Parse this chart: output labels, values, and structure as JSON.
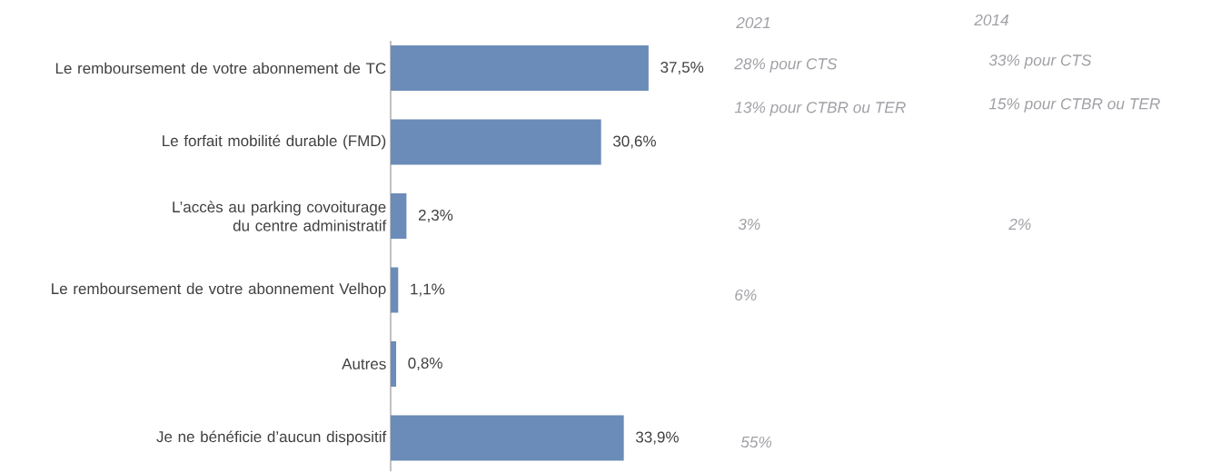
{
  "chart_data": {
    "type": "bar",
    "orientation": "horizontal",
    "relative": false,
    "categories": [
      "Le remboursement de votre abonnement de TC",
      "Le forfait mobilité durable (FMD)",
      "L’accès au parking covoiturage du centre administratif",
      "Le remboursement de votre abonnement Velhop",
      "Autres",
      "Je ne bénéficie d’aucun dispositif"
    ],
    "values": [
      37.5,
      30.6,
      2.3,
      1.1,
      0.8,
      33.9
    ],
    "value_labels": [
      "37,5%",
      "30,6%",
      "2,3%",
      "1,1%",
      "0,8%",
      "33,9%"
    ],
    "color": "#6b8cb8",
    "annotations": [
      "2021",
      "28% pour CTS",
      "13% pour CTBR ou TER",
      "3%",
      "6%",
      "55%",
      "2014",
      "33% pour CTS",
      "15% pour CTBR ou TER",
      "2%"
    ]
  }
}
